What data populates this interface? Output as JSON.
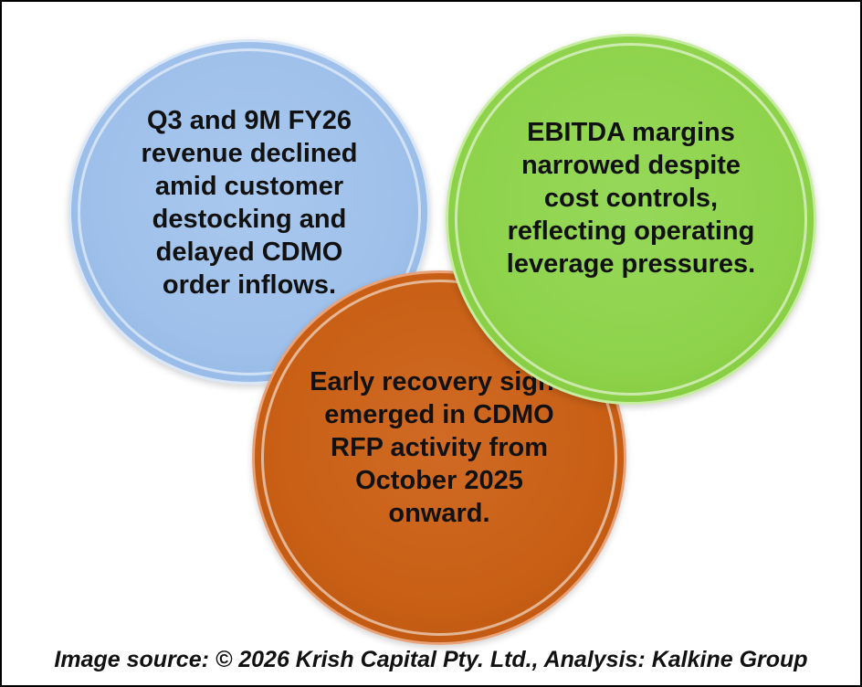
{
  "circles": {
    "revenue": {
      "text": "Q3 and 9M FY26\nrevenue declined\namid customer\ndestocking and\ndelayed CDMO\norder inflows.",
      "color": "#9ec0ea"
    },
    "recovery": {
      "text": "Early recovery signs\nemerged in CDMO\nRFP activity from\nOctober 2025\nonward.",
      "color": "#c85f15"
    },
    "ebitda": {
      "text": "EBITDA margins\nnarrowed despite\ncost controls,\nreflecting operating\nleverage pressures.",
      "color": "#8ed34b"
    }
  },
  "caption": "Image source: © 2026 Krish Capital Pty. Ltd., Analysis: Kalkine Group"
}
